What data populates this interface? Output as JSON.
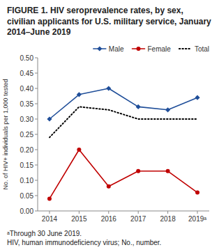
{
  "chart_data": {
    "type": "line",
    "title": "FIGURE 1. HIV seroprevalence rates, by sex, civilian applicants for U.S. military service, January 2014–June 2019",
    "y_label": "No. of HIV+ individuals per 1,000 tested",
    "x": [
      2014,
      2015,
      2016,
      2017,
      2018,
      2019
    ],
    "xlim": [
      2013.6,
      2019.4
    ],
    "xticks": [
      2014,
      2015,
      2016,
      2017,
      2018,
      {
        "value": 2019,
        "label": "2019ᵃ"
      }
    ],
    "ylim": [
      0.0,
      0.5
    ],
    "yticks": [
      {
        "value": 0.0,
        "label": "0.00"
      },
      {
        "value": 0.05,
        "label": "0.05"
      },
      {
        "value": 0.1,
        "label": "0.10"
      },
      {
        "value": 0.15,
        "label": "0.15"
      },
      {
        "value": 0.2,
        "label": "0.20"
      },
      {
        "value": 0.25,
        "label": "0.25"
      },
      {
        "value": 0.3,
        "label": "0.30"
      },
      {
        "value": 0.35,
        "label": "0.35"
      },
      {
        "value": 0.4,
        "label": "0.40"
      },
      {
        "value": 0.45,
        "label": "0.45"
      },
      {
        "value": 0.5,
        "label": "0.50"
      }
    ],
    "series": [
      {
        "name": "Male",
        "color": "#1f4e99",
        "marker": "diamond",
        "values": [
          0.3,
          0.38,
          0.4,
          0.34,
          0.33,
          0.37
        ]
      },
      {
        "name": "Female",
        "color": "#c00000",
        "marker": "circle",
        "values": [
          0.04,
          0.2,
          0.08,
          0.13,
          0.13,
          0.06
        ]
      },
      {
        "name": "Total",
        "color": "#000000",
        "line_style": "dotted",
        "values": [
          0.24,
          0.34,
          0.33,
          0.3,
          0.3,
          0.3
        ]
      }
    ],
    "legend": "upper right",
    "grid": false,
    "annotations": [
      "ᵃThrough 30 June 2019.",
      "HIV, human immunodeficiency virus; No., number."
    ]
  }
}
